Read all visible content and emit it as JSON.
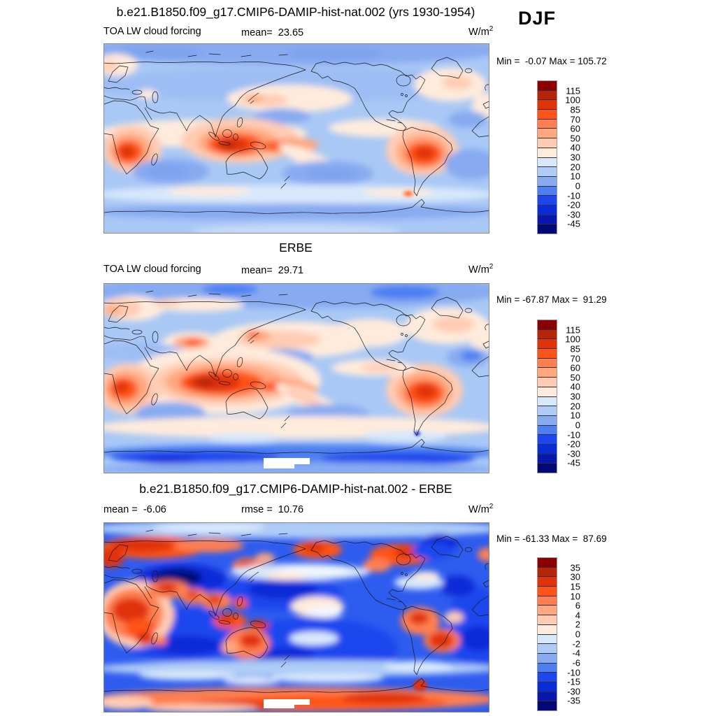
{
  "season": "DJF",
  "panels": [
    {
      "title": "b.e21.B1850.f09_g17.CMIP6-DAMIP-hist-nat.002 (yrs 1930-1954)",
      "variable": "TOA LW cloud forcing",
      "mean_text": "mean=  23.65",
      "units_base": "W/m",
      "units_exp": "2",
      "minmax_text": "Min =  -0.07 Max = 105.72"
    },
    {
      "title": "ERBE",
      "variable": "TOA LW cloud forcing",
      "mean_text": "mean=  29.71",
      "units_base": "W/m",
      "units_exp": "2",
      "minmax_text": "Min = -67.87 Max =  91.29"
    },
    {
      "title": "b.e21.B1850.f09_g17.CMIP6-DAMIP-hist-nat.002 - ERBE",
      "mean_text": "mean =  -6.06",
      "rmse_text": "rmse =  10.76",
      "units_base": "W/m",
      "units_exp": "2",
      "minmax_text": "Min = -61.33 Max =  87.69"
    }
  ],
  "colorbars": {
    "main": {
      "colors": [
        "#8B0000",
        "#B42509",
        "#E03308",
        "#FF5418",
        "#FF7F50",
        "#FFA77E",
        "#FFCCB3",
        "#FFEBDC",
        "#D8E8FB",
        "#AECCF6",
        "#87AAF1",
        "#4B7FF2",
        "#1C47EE",
        "#0A2CD8",
        "#0818AC",
        "#040877"
      ],
      "labels": [
        "115",
        "100",
        "85",
        "70",
        "60",
        "50",
        "40",
        "30",
        "20",
        "10",
        "0",
        "-10",
        "-20",
        "-30",
        "-45"
      ]
    },
    "diff": {
      "colors": [
        "#8B0000",
        "#B42509",
        "#E03308",
        "#FF5418",
        "#FF7F50",
        "#FFA77E",
        "#FFCCB3",
        "#FFEBDC",
        "#D8E8FB",
        "#AECCF6",
        "#87AAF1",
        "#4B7FF2",
        "#1C47EE",
        "#0A2CD8",
        "#0818AC",
        "#040877"
      ],
      "labels": [
        "35",
        "30",
        "15",
        "10",
        "6",
        "4",
        "2",
        "0",
        "-2",
        "-4",
        "-6",
        "-10",
        "-15",
        "-30",
        "-35"
      ]
    }
  },
  "chart_data": [
    {
      "type": "heatmap",
      "panel": "model",
      "title": "b.e21.B1850.f09_g17.CMIP6-DAMIP-hist-nat.002 (yrs 1930-1954)",
      "variable": "TOA LW cloud forcing",
      "season": "DJF",
      "units": "W/m^2",
      "mean": 23.65,
      "min": -0.07,
      "max": 105.72,
      "contour_levels": [
        -45,
        -30,
        -20,
        -10,
        0,
        10,
        20,
        30,
        40,
        50,
        60,
        70,
        85,
        100,
        115
      ],
      "palette_low_to_high": [
        "#040877",
        "#0818AC",
        "#0A2CD8",
        "#1C47EE",
        "#4B7FF2",
        "#87AAF1",
        "#AECCF6",
        "#D8E8FB",
        "#FFEBDC",
        "#FFCCB3",
        "#FFA77E",
        "#FF7F50",
        "#FF5418",
        "#E03308",
        "#B42509",
        "#8B0000"
      ],
      "projection": "global cylindrical equidistant, Pacific-centered",
      "legend_position": "right"
    },
    {
      "type": "heatmap",
      "panel": "observations",
      "title": "ERBE",
      "variable": "TOA LW cloud forcing",
      "season": "DJF",
      "units": "W/m^2",
      "mean": 29.71,
      "min": -67.87,
      "max": 91.29,
      "contour_levels": [
        -45,
        -30,
        -20,
        -10,
        0,
        10,
        20,
        30,
        40,
        50,
        60,
        70,
        85,
        100,
        115
      ],
      "palette_low_to_high": [
        "#040877",
        "#0818AC",
        "#0A2CD8",
        "#1C47EE",
        "#4B7FF2",
        "#87AAF1",
        "#AECCF6",
        "#D8E8FB",
        "#FFEBDC",
        "#FFCCB3",
        "#FFA77E",
        "#FF7F50",
        "#FF5418",
        "#E03308",
        "#B42509",
        "#8B0000"
      ],
      "projection": "global cylindrical equidistant, Pacific-centered",
      "legend_position": "right"
    },
    {
      "type": "heatmap",
      "panel": "difference",
      "title": "b.e21.B1850.f09_g17.CMIP6-DAMIP-hist-nat.002 - ERBE",
      "season": "DJF",
      "units": "W/m^2",
      "mean": -6.06,
      "rmse": 10.76,
      "min": -61.33,
      "max": 87.69,
      "contour_levels": [
        -35,
        -30,
        -15,
        -10,
        -6,
        -4,
        -2,
        0,
        2,
        4,
        6,
        10,
        15,
        30,
        35
      ],
      "palette_low_to_high": [
        "#040877",
        "#0818AC",
        "#0A2CD8",
        "#1C47EE",
        "#4B7FF2",
        "#87AAF1",
        "#AECCF6",
        "#D8E8FB",
        "#FFEBDC",
        "#FFCCB3",
        "#FFA77E",
        "#FF7F50",
        "#FF5418",
        "#E03308",
        "#B42509",
        "#8B0000"
      ],
      "projection": "global cylindrical equidistant, Pacific-centered",
      "legend_position": "right"
    }
  ]
}
